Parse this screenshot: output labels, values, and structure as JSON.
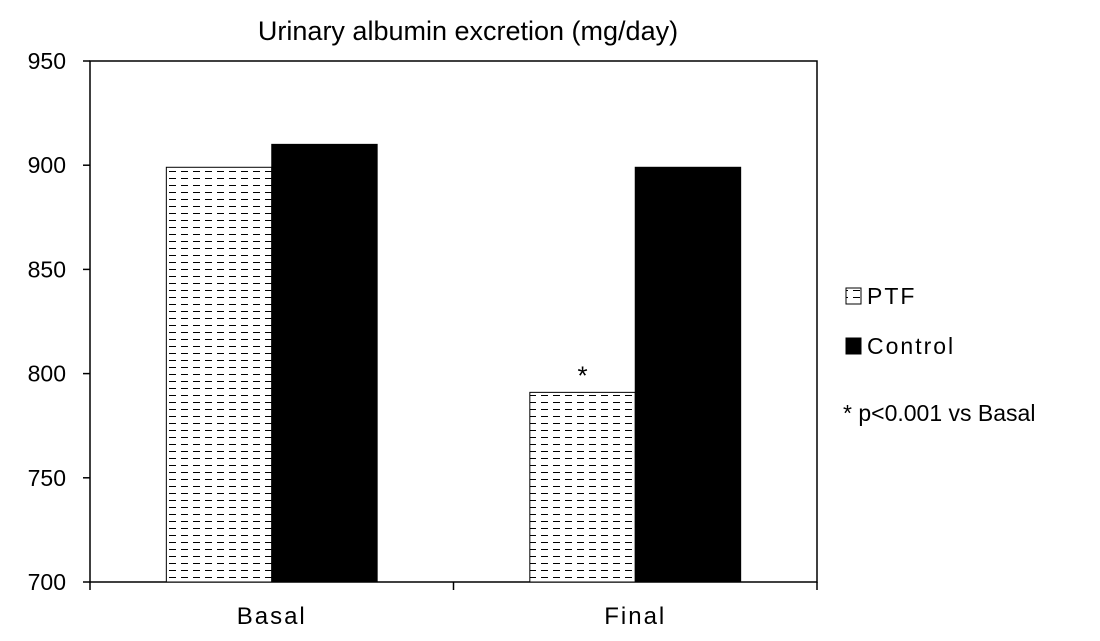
{
  "chart_data": {
    "type": "bar",
    "title": "Urinary albumin excretion (mg/day)",
    "xlabel": "",
    "ylabel": "",
    "categories": [
      "Basal",
      "Final"
    ],
    "series": [
      {
        "name": "PTF",
        "values": [
          899,
          791
        ],
        "pattern": "dashed-hatch"
      },
      {
        "name": "Control",
        "values": [
          910,
          899
        ],
        "color": "#000000"
      }
    ],
    "ylim": [
      700,
      950
    ],
    "yticks": [
      "700",
      "750",
      "800",
      "850",
      "900",
      "950"
    ],
    "annotations": [
      {
        "text": "*",
        "category": "Final",
        "series": "PTF"
      }
    ],
    "footnote": "* p<0.001 vs Basal",
    "legend_position": "right",
    "grid": false
  }
}
